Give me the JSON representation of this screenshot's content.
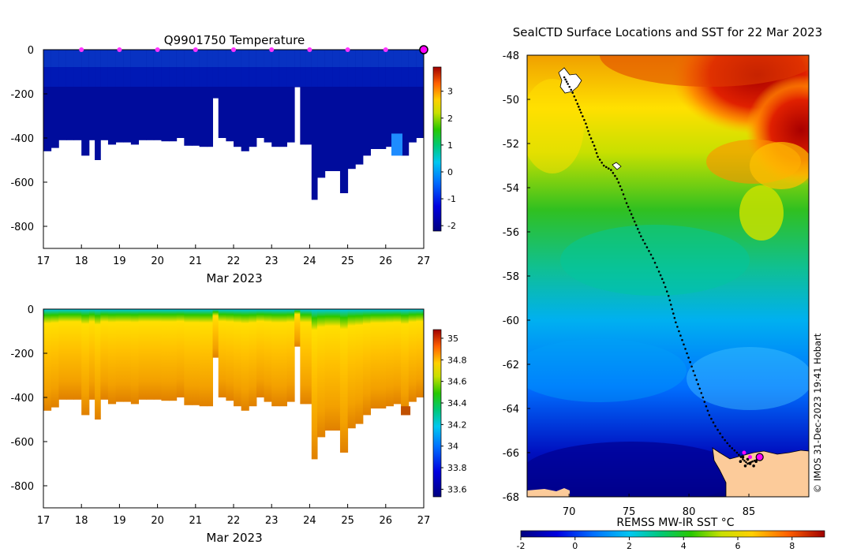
{
  "chart_data": [
    {
      "type": "heatmap",
      "title": "Q9901750  Temperature",
      "xlabel": "Mar 2023",
      "ylabel": "",
      "x_ticks": [
        "17",
        "18",
        "19",
        "20",
        "21",
        "22",
        "23",
        "24",
        "25",
        "26",
        "27"
      ],
      "xlim": [
        17,
        27
      ],
      "y_ticks": [
        "0",
        "-200",
        "-400",
        "-600",
        "-800"
      ],
      "ylim": [
        -900,
        0
      ],
      "colorbar_ticks": [
        "3",
        "2",
        "1",
        "0",
        "-1",
        "-2"
      ],
      "colorbar_range": [
        -2.2,
        3.9
      ],
      "marker_days": [
        18,
        19,
        20,
        21,
        22,
        23,
        24,
        25,
        26,
        27
      ],
      "profiles": [
        {
          "t": 17.0,
          "depth": 460
        },
        {
          "t": 17.2,
          "depth": 445
        },
        {
          "t": 17.4,
          "depth": 410
        },
        {
          "t": 17.6,
          "depth": 410
        },
        {
          "t": 17.8,
          "depth": 410
        },
        {
          "t": 18.0,
          "depth": 480
        },
        {
          "t": 18.2,
          "depth": 410
        },
        {
          "t": 18.35,
          "depth": 500
        },
        {
          "t": 18.5,
          "depth": 410
        },
        {
          "t": 18.7,
          "depth": 430
        },
        {
          "t": 18.9,
          "depth": 420
        },
        {
          "t": 19.1,
          "depth": 420
        },
        {
          "t": 19.3,
          "depth": 430
        },
        {
          "t": 19.5,
          "depth": 410
        },
        {
          "t": 19.7,
          "depth": 410
        },
        {
          "t": 19.9,
          "depth": 410
        },
        {
          "t": 20.1,
          "depth": 415
        },
        {
          "t": 20.3,
          "depth": 415
        },
        {
          "t": 20.5,
          "depth": 400
        },
        {
          "t": 20.7,
          "depth": 435
        },
        {
          "t": 20.9,
          "depth": 435
        },
        {
          "t": 21.1,
          "depth": 440
        },
        {
          "t": 21.3,
          "depth": 440
        },
        {
          "t": 21.45,
          "depth": 220
        },
        {
          "t": 21.6,
          "depth": 400
        },
        {
          "t": 21.8,
          "depth": 415
        },
        {
          "t": 22.0,
          "depth": 440
        },
        {
          "t": 22.2,
          "depth": 460
        },
        {
          "t": 22.4,
          "depth": 440
        },
        {
          "t": 22.6,
          "depth": 400
        },
        {
          "t": 22.8,
          "depth": 420
        },
        {
          "t": 23.0,
          "depth": 440
        },
        {
          "t": 23.2,
          "depth": 440
        },
        {
          "t": 23.4,
          "depth": 420
        },
        {
          "t": 23.6,
          "depth": 170
        },
        {
          "t": 23.75,
          "depth": 430
        },
        {
          "t": 23.9,
          "depth": 430
        },
        {
          "t": 24.05,
          "depth": 680
        },
        {
          "t": 24.2,
          "depth": 580
        },
        {
          "t": 24.4,
          "depth": 550
        },
        {
          "t": 24.6,
          "depth": 550
        },
        {
          "t": 24.8,
          "depth": 650
        },
        {
          "t": 25.0,
          "depth": 540
        },
        {
          "t": 25.2,
          "depth": 520
        },
        {
          "t": 25.4,
          "depth": 480
        },
        {
          "t": 25.6,
          "depth": 450
        },
        {
          "t": 25.8,
          "depth": 450
        },
        {
          "t": 26.0,
          "depth": 440
        },
        {
          "t": 26.2,
          "depth": 430
        },
        {
          "t": 26.4,
          "depth": 480
        },
        {
          "t": 26.6,
          "depth": 420
        },
        {
          "t": 26.8,
          "depth": 400
        },
        {
          "t": 27.0,
          "depth": 380
        }
      ]
    },
    {
      "type": "heatmap",
      "title": "",
      "xlabel": "Mar 2023",
      "ylabel": "",
      "x_ticks": [
        "17",
        "18",
        "19",
        "20",
        "21",
        "22",
        "23",
        "24",
        "25",
        "26",
        "27"
      ],
      "xlim": [
        17,
        27
      ],
      "y_ticks": [
        "0",
        "-200",
        "-400",
        "-600",
        "-800"
      ],
      "ylim": [
        -900,
        0
      ],
      "colorbar_ticks": [
        "35",
        "34.8",
        "34.6",
        "34.4",
        "34.2",
        "34",
        "33.8",
        "33.6"
      ],
      "colorbar_range": [
        33.53,
        35.08
      ],
      "profiles_same_as_temperature": true
    },
    {
      "type": "heatmap",
      "title": "SealCTD Surface Locations and SST for 22 Mar 2023",
      "xlabel": "REMSS MW-IR SST °C",
      "x_ticks": [
        "70",
        "75",
        "80",
        "85"
      ],
      "xlim": [
        66.5,
        90
      ],
      "y_ticks": [
        "-48",
        "-50",
        "-52",
        "-54",
        "-56",
        "-58",
        "-60",
        "-62",
        "-64",
        "-66",
        "-68"
      ],
      "ylim": [
        -68,
        -48
      ],
      "colorbar_ticks": [
        "-2",
        "0",
        "2",
        "4",
        "6",
        "8"
      ],
      "colorbar_range": [
        -2,
        9.2
      ],
      "track": [
        [
          69.6,
          -49.0
        ],
        [
          69.9,
          -49.3
        ],
        [
          70.3,
          -49.7
        ],
        [
          70.7,
          -50.2
        ],
        [
          71.0,
          -50.6
        ],
        [
          71.4,
          -51.1
        ],
        [
          71.7,
          -51.6
        ],
        [
          72.1,
          -52.1
        ],
        [
          72.4,
          -52.6
        ],
        [
          72.9,
          -53.0
        ],
        [
          73.5,
          -53.2
        ],
        [
          74.0,
          -53.6
        ],
        [
          74.4,
          -54.1
        ],
        [
          74.8,
          -54.7
        ],
        [
          75.2,
          -55.2
        ],
        [
          75.6,
          -55.7
        ],
        [
          76.0,
          -56.2
        ],
        [
          76.5,
          -56.7
        ],
        [
          77.0,
          -57.2
        ],
        [
          77.5,
          -57.8
        ],
        [
          77.9,
          -58.3
        ],
        [
          78.3,
          -58.9
        ],
        [
          78.6,
          -59.5
        ],
        [
          78.9,
          -60.1
        ],
        [
          79.3,
          -60.7
        ],
        [
          79.7,
          -61.3
        ],
        [
          80.1,
          -61.9
        ],
        [
          80.5,
          -62.5
        ],
        [
          80.9,
          -63.1
        ],
        [
          81.3,
          -63.7
        ],
        [
          81.7,
          -64.3
        ],
        [
          82.2,
          -64.8
        ],
        [
          82.8,
          -65.3
        ],
        [
          83.4,
          -65.7
        ],
        [
          84.0,
          -66.0
        ],
        [
          84.5,
          -66.3
        ],
        [
          84.9,
          -66.5
        ],
        [
          85.3,
          -66.4
        ],
        [
          85.8,
          -66.3
        ]
      ],
      "highlight_points": [
        [
          84.6,
          -66.0
        ],
        [
          85.1,
          -66.2
        ],
        [
          85.9,
          -66.2
        ]
      ],
      "credit": "© IMOS 31-Dec-2023 19:41 Hobart"
    }
  ]
}
